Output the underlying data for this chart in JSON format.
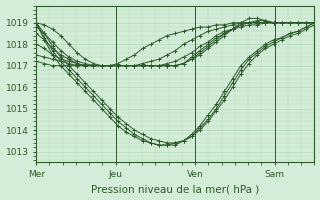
{
  "bg_color": "#d4edd8",
  "grid_color": "#b0d8b8",
  "line_color": "#2d5a2d",
  "xlabel": "Pression niveau de la mer( hPa )",
  "xlabel_fontsize": 7.5,
  "tick_fontsize": 6.5,
  "xtick_labels": [
    "Mer",
    "Jeu",
    "Ven",
    "Sam"
  ],
  "xtick_positions": [
    0,
    48,
    96,
    144
  ],
  "ylim": [
    1012.5,
    1019.8
  ],
  "yticks": [
    1013,
    1014,
    1015,
    1016,
    1017,
    1018,
    1019
  ],
  "total_hours": 168,
  "lines": [
    [
      1019.0,
      1018.9,
      1018.7,
      1018.4,
      1018.0,
      1017.6,
      1017.3,
      1017.1,
      1017.0,
      1017.0,
      1017.0,
      1017.0,
      1017.0,
      1017.0,
      1017.0,
      1017.0,
      1017.0,
      1017.0,
      1017.1,
      1017.3,
      1017.5,
      1017.8,
      1018.1,
      1018.4,
      1018.7,
      1019.0,
      1019.2,
      1019.2,
      1019.1,
      1019.0,
      1019.0,
      1019.0,
      1019.0,
      1019.0,
      1019.0
    ],
    [
      1018.8,
      1018.5,
      1018.1,
      1017.7,
      1017.4,
      1017.2,
      1017.1,
      1017.0,
      1017.0,
      1017.0,
      1017.0,
      1017.0,
      1017.0,
      1017.0,
      1017.0,
      1017.0,
      1017.0,
      1017.0,
      1017.1,
      1017.3,
      1017.6,
      1017.9,
      1018.2,
      1018.5,
      1018.7,
      1018.9,
      1019.0,
      1019.1,
      1019.1,
      1019.0,
      1019.0,
      1019.0,
      1019.0,
      1019.0,
      1019.0
    ],
    [
      1018.5,
      1018.2,
      1017.8,
      1017.5,
      1017.3,
      1017.1,
      1017.0,
      1017.0,
      1017.0,
      1017.0,
      1017.0,
      1017.0,
      1017.0,
      1017.0,
      1017.0,
      1017.0,
      1017.0,
      1017.0,
      1017.1,
      1017.4,
      1017.7,
      1018.0,
      1018.3,
      1018.5,
      1018.7,
      1018.9,
      1019.0,
      1019.0,
      1019.0,
      1019.0,
      1019.0,
      1019.0,
      1019.0,
      1019.0,
      1019.0
    ],
    [
      1018.0,
      1017.8,
      1017.5,
      1017.3,
      1017.2,
      1017.1,
      1017.0,
      1017.0,
      1017.0,
      1017.0,
      1017.0,
      1017.0,
      1017.0,
      1017.0,
      1017.0,
      1017.0,
      1017.1,
      1017.2,
      1017.4,
      1017.6,
      1017.9,
      1018.1,
      1018.4,
      1018.6,
      1018.7,
      1018.8,
      1018.9,
      1018.9,
      1019.0,
      1019.0,
      1019.0,
      1019.0,
      1019.0,
      1019.0,
      1019.0
    ],
    [
      1017.5,
      1017.4,
      1017.3,
      1017.2,
      1017.1,
      1017.0,
      1017.0,
      1017.0,
      1017.0,
      1017.0,
      1017.0,
      1017.0,
      1017.0,
      1017.1,
      1017.2,
      1017.3,
      1017.5,
      1017.7,
      1018.0,
      1018.2,
      1018.4,
      1018.6,
      1018.7,
      1018.8,
      1018.9,
      1019.0,
      1019.0,
      1019.0,
      1019.0,
      1019.0,
      1019.0,
      1019.0,
      1019.0,
      1019.0,
      1019.0
    ],
    [
      1017.2,
      1017.1,
      1017.0,
      1017.0,
      1017.0,
      1017.0,
      1017.0,
      1017.0,
      1017.0,
      1017.0,
      1017.1,
      1017.3,
      1017.5,
      1017.8,
      1018.0,
      1018.2,
      1018.4,
      1018.5,
      1018.6,
      1018.7,
      1018.8,
      1018.8,
      1018.9,
      1018.9,
      1019.0,
      1019.0,
      1019.0,
      1019.0,
      1019.0,
      1019.0,
      1019.0,
      1019.0,
      1019.0,
      1019.0,
      1019.0
    ],
    [
      1019.0,
      1018.5,
      1017.9,
      1017.4,
      1017.0,
      1016.6,
      1016.2,
      1015.8,
      1015.4,
      1015.0,
      1014.6,
      1014.3,
      1014.0,
      1013.8,
      1013.6,
      1013.5,
      1013.4,
      1013.4,
      1013.5,
      1013.7,
      1014.0,
      1014.4,
      1014.9,
      1015.4,
      1016.0,
      1016.6,
      1017.1,
      1017.5,
      1017.8,
      1018.0,
      1018.2,
      1018.4,
      1018.5,
      1018.7,
      1018.9
    ],
    [
      1019.0,
      1018.3,
      1017.7,
      1017.2,
      1016.8,
      1016.4,
      1016.0,
      1015.6,
      1015.2,
      1014.8,
      1014.4,
      1014.1,
      1013.8,
      1013.6,
      1013.4,
      1013.3,
      1013.3,
      1013.3,
      1013.5,
      1013.7,
      1014.1,
      1014.5,
      1015.0,
      1015.6,
      1016.2,
      1016.8,
      1017.3,
      1017.6,
      1017.9,
      1018.1,
      1018.3,
      1018.5,
      1018.6,
      1018.8,
      1019.0
    ],
    [
      1019.0,
      1018.2,
      1017.5,
      1017.0,
      1016.6,
      1016.2,
      1015.8,
      1015.4,
      1015.0,
      1014.6,
      1014.2,
      1013.9,
      1013.7,
      1013.5,
      1013.4,
      1013.3,
      1013.3,
      1013.4,
      1013.5,
      1013.8,
      1014.2,
      1014.7,
      1015.2,
      1015.8,
      1016.4,
      1017.0,
      1017.4,
      1017.7,
      1018.0,
      1018.2,
      1018.3,
      1018.5,
      1018.6,
      1018.8,
      1019.0
    ]
  ]
}
